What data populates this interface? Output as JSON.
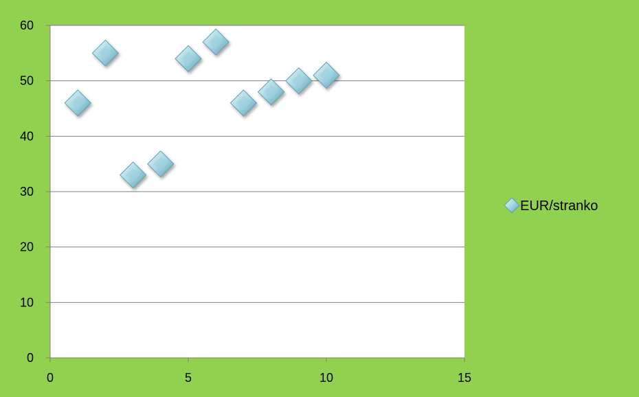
{
  "colors": {
    "background": "#92d050",
    "plot_area": "#ffffff",
    "gridline": "#7f7f7f",
    "marker_light": "#dff0f5",
    "marker_mid": "#9ccfdc",
    "marker_dark": "#5e9fb1"
  },
  "chart_data": {
    "type": "scatter",
    "title": "",
    "xlabel": "",
    "ylabel": "",
    "xlim": [
      0,
      15
    ],
    "ylim": [
      0,
      60
    ],
    "xticks": [
      "0",
      "5",
      "10",
      "15"
    ],
    "yticks": [
      "0",
      "10",
      "20",
      "30",
      "40",
      "50",
      "60"
    ],
    "grid": "horizontal",
    "legend_position": "right",
    "marker": "diamond",
    "series": [
      {
        "name": "EUR/stranko",
        "points": [
          {
            "x": 1,
            "y": 46
          },
          {
            "x": 2,
            "y": 55
          },
          {
            "x": 3,
            "y": 33
          },
          {
            "x": 4,
            "y": 35
          },
          {
            "x": 5,
            "y": 54
          },
          {
            "x": 6,
            "y": 57
          },
          {
            "x": 7,
            "y": 46
          },
          {
            "x": 8,
            "y": 48
          },
          {
            "x": 9,
            "y": 50
          },
          {
            "x": 10,
            "y": 51
          }
        ]
      }
    ]
  }
}
